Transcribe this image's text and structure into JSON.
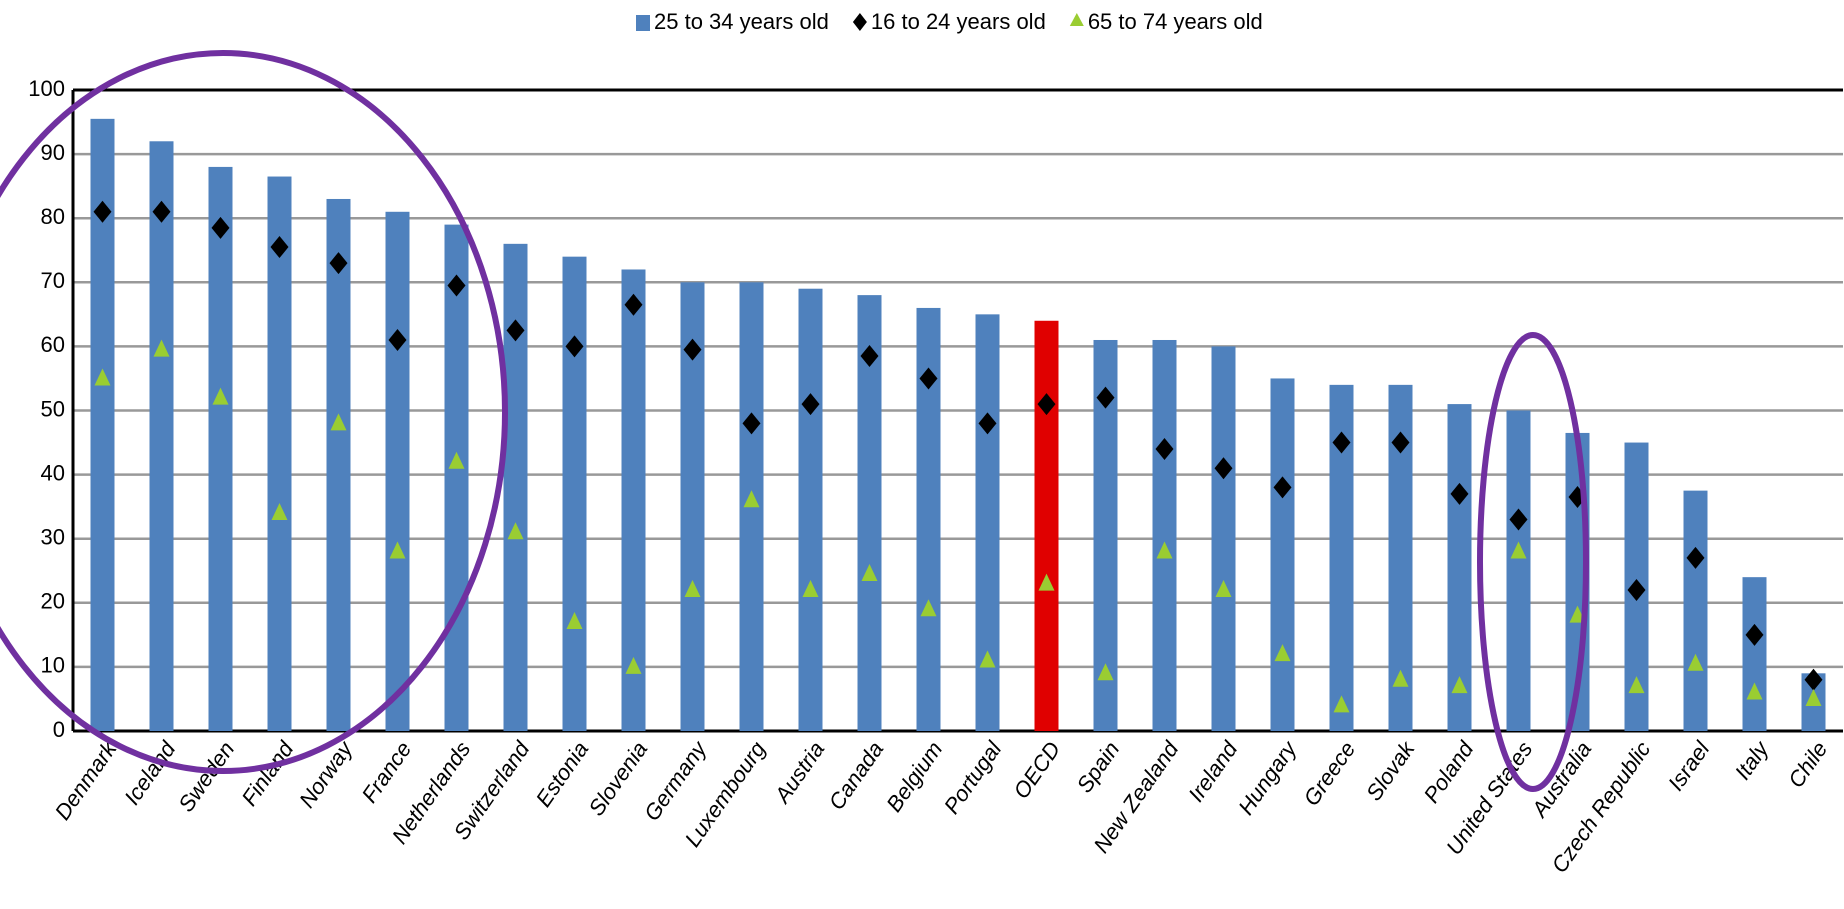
{
  "chart_data": {
    "type": "bar",
    "categories": [
      "Denmark",
      "Iceland",
      "Sweden",
      "Finland",
      "Norway",
      "France",
      "Netherlands",
      "Switzerland",
      "Estonia",
      "Slovenia",
      "Germany",
      "Luxembourg",
      "Austria",
      "Canada",
      "Belgium",
      "Portugal",
      "OECD",
      "Spain",
      "New Zealand",
      "Ireland",
      "Hungary",
      "Greece",
      "Slovak",
      "Poland",
      "United States",
      "Australia",
      "Czech Republic",
      "Israel",
      "Italy",
      "Chile"
    ],
    "series": [
      {
        "name": "25 to 34 years old",
        "color": "#4f81bd",
        "marker": "bar",
        "colors": [
          "#4f81bd",
          "#4f81bd",
          "#4f81bd",
          "#4f81bd",
          "#4f81bd",
          "#4f81bd",
          "#4f81bd",
          "#4f81bd",
          "#4f81bd",
          "#4f81bd",
          "#4f81bd",
          "#4f81bd",
          "#4f81bd",
          "#4f81bd",
          "#4f81bd",
          "#4f81bd",
          "#e00000",
          "#4f81bd",
          "#4f81bd",
          "#4f81bd",
          "#4f81bd",
          "#4f81bd",
          "#4f81bd",
          "#4f81bd",
          "#4f81bd",
          "#4f81bd",
          "#4f81bd",
          "#4f81bd",
          "#4f81bd",
          "#4f81bd"
        ],
        "values": [
          95.5,
          92,
          88,
          86.5,
          83,
          81,
          79,
          76,
          74,
          72,
          70,
          70,
          69,
          68,
          66,
          65,
          64,
          61,
          61,
          60,
          55,
          54,
          54,
          51,
          50,
          46.5,
          45,
          37.5,
          24,
          9
        ]
      },
      {
        "name": "16 to 24 years old",
        "color": "#000000",
        "marker": "diamond",
        "values": [
          81,
          81,
          78.5,
          75.5,
          73,
          61,
          69.5,
          62.5,
          60,
          66.5,
          59.5,
          48,
          51,
          58.5,
          55,
          48,
          51,
          52,
          44,
          41,
          38,
          45,
          45,
          37,
          33,
          36.5,
          22,
          27,
          15,
          8
        ]
      },
      {
        "name": "65 to 74 years old",
        "color": "#9acd32",
        "marker": "triangle",
        "values": [
          55,
          59.5,
          52,
          34,
          48,
          28,
          42,
          31,
          17,
          10,
          22,
          36,
          22,
          24.5,
          19,
          11,
          23,
          9,
          28,
          22,
          12,
          4,
          8,
          7,
          28,
          18,
          7,
          10.5,
          6,
          5
        ]
      }
    ],
    "ylim": [
      0,
      100
    ],
    "yticks": [
      0,
      10,
      20,
      30,
      40,
      50,
      60,
      70,
      80,
      90,
      100
    ],
    "grid": true,
    "legend": "top"
  }
}
